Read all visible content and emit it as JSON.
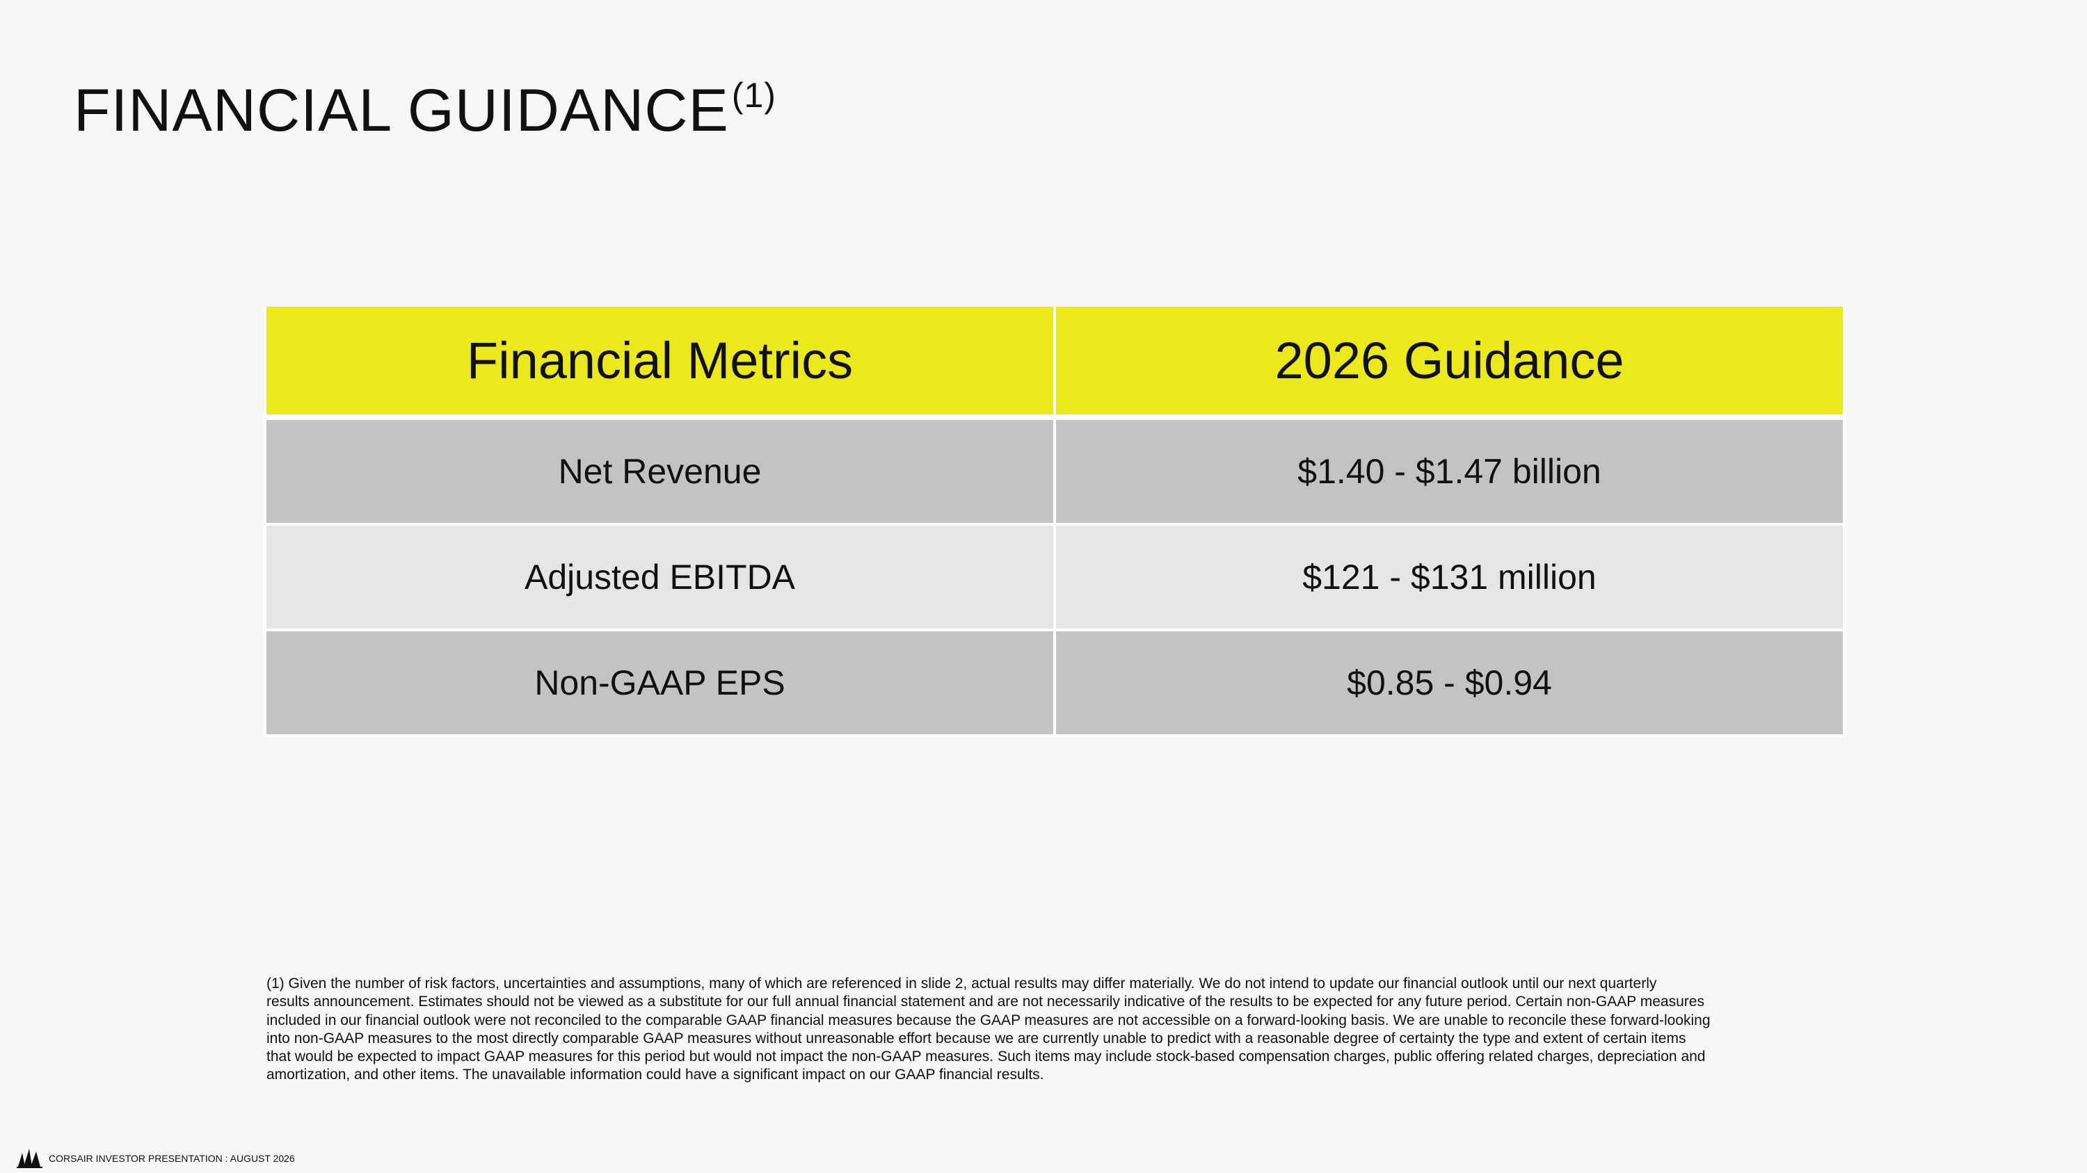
{
  "header": {
    "title": "FINANCIAL GUIDANCE",
    "title_note": "(1)"
  },
  "table": {
    "columns": [
      "Financial Metrics",
      "2026 Guidance"
    ],
    "rows": [
      [
        "Net Revenue",
        "$1.40 - $1.47 billion"
      ],
      [
        "Adjusted EBITDA",
        "$121 - $131 million"
      ],
      [
        "Non-GAAP EPS",
        "$0.85 - $0.94"
      ]
    ]
  },
  "footnote": {
    "lines": [
      "(1) Given the number of risk factors, uncertainties and assumptions, many of which are referenced in slide 2, actual results may differ materially. We do not intend to update our financial outlook until our next quarterly",
      "results announcement. Estimates should not be viewed as a substitute for our full annual financial statement and are not necessarily indicative of the results to be expected for any future period. Certain non-GAAP measures",
      "included in our financial outlook were not reconciled to the comparable GAAP financial measures because the GAAP measures are not accessible on a forward-looking basis. We are unable to reconcile these forward-looking",
      "into non-GAAP measures to the most directly comparable GAAP measures without unreasonable effort because we are currently unable to predict with a reasonable degree of certainty the type and extent of certain items",
      "that would be expected to impact GAAP measures for this period but would not impact the non-GAAP measures. Such items may include stock-based compensation charges, public offering related charges, depreciation and",
      "amortization, and other items. The unavailable information could have a significant impact on our GAAP financial results."
    ]
  },
  "footer": {
    "text": "CORSAIR INVESTOR PRESENTATION : AUGUST 2026"
  }
}
